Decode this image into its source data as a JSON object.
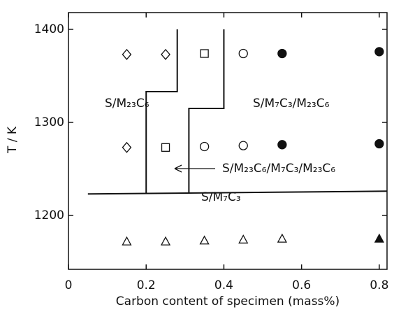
{
  "chart_data": {
    "type": "scatter",
    "xlabel": "Carbon content of specimen (mass%)",
    "ylabel": "T / K",
    "xlim": [
      0,
      0.82
    ],
    "xticks": [
      0,
      0.2,
      0.4,
      0.6,
      0.8
    ],
    "ylim": [
      1142,
      1418
    ],
    "yticks": [
      1200,
      1300,
      1400
    ],
    "series": [
      {
        "marker": "diamond",
        "filled": false,
        "color": "#111111",
        "x": [
          0.15,
          0.25,
          0.15
        ],
        "values": [
          1373,
          1373,
          1273
        ]
      },
      {
        "marker": "square",
        "filled": false,
        "color": "#111111",
        "x": [
          0.35,
          0.25
        ],
        "values": [
          1374,
          1273
        ]
      },
      {
        "marker": "circle",
        "filled": false,
        "color": "#111111",
        "x": [
          0.45,
          0.35,
          0.45
        ],
        "values": [
          1374,
          1274,
          1275
        ]
      },
      {
        "marker": "circle",
        "filled": true,
        "color": "#111111",
        "x": [
          0.55,
          0.8,
          0.55,
          0.8
        ],
        "values": [
          1374,
          1376,
          1276,
          1277
        ]
      },
      {
        "marker": "triangle",
        "filled": false,
        "color": "#111111",
        "x": [
          0.15,
          0.25,
          0.35,
          0.45,
          0.55
        ],
        "values": [
          1172,
          1172,
          1173,
          1174,
          1175
        ]
      },
      {
        "marker": "triangle",
        "filled": true,
        "color": "#111111",
        "x": [
          0.8
        ],
        "values": [
          1175
        ]
      }
    ],
    "boundaries": [
      {
        "x": [
          0.28,
          0.28,
          0.2,
          0.2
        ],
        "values": [
          1400,
          1333,
          1333,
          1224
        ]
      },
      {
        "x": [
          0.4,
          0.4,
          0.31,
          0.31
        ],
        "values": [
          1400,
          1315,
          1315,
          1224
        ]
      },
      {
        "x": [
          0.05,
          0.82
        ],
        "values": [
          1223,
          1226
        ]
      }
    ],
    "annotations": [
      "S/M₂₃C₆",
      "S/M₇C₃/M₂₃C₆",
      "S/M₂₃C₆/M₇C₃/M₂₃C₆",
      "S/M₇C₃"
    ]
  }
}
